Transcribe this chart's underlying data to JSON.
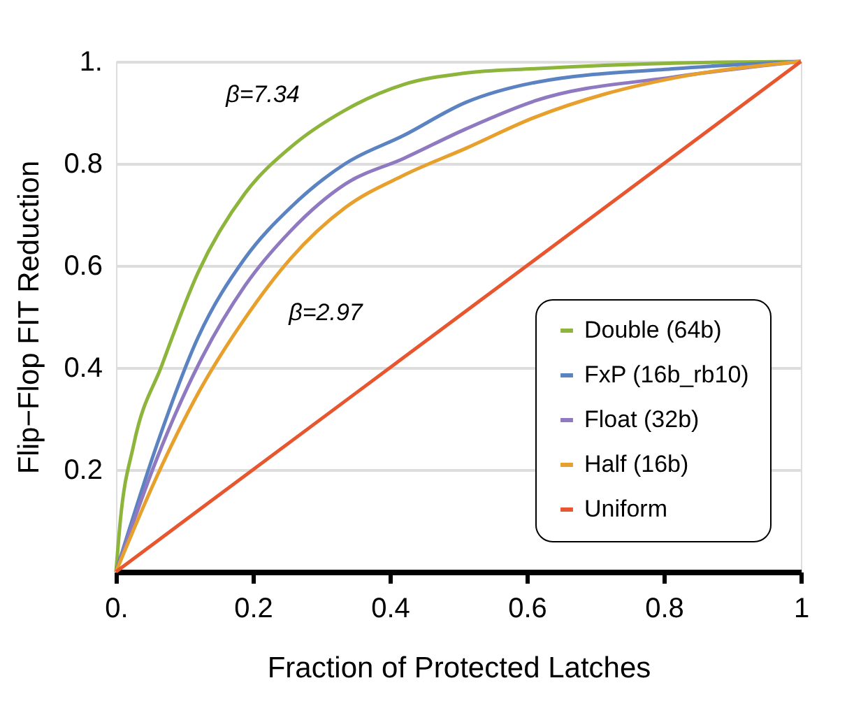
{
  "chart_data": {
    "type": "line",
    "xlabel": "Fraction of Protected Latches",
    "ylabel": "Flip−Flop FIT Reduction",
    "xlim": [
      0,
      1
    ],
    "ylim": [
      0,
      1
    ],
    "xticks": [
      {
        "value": 0,
        "label": "0."
      },
      0.2,
      0.4,
      0.6,
      0.8,
      1
    ],
    "yticks": [
      0.2,
      0.4,
      0.6,
      0.8,
      {
        "value": 1,
        "label": "1."
      }
    ],
    "grid": "y",
    "legend": "bottom right",
    "line_style": "solid",
    "marker": "none",
    "annotations": [
      "β=7.34",
      "β=2.97"
    ],
    "series": [
      {
        "name": "Double (64b)",
        "color": "#8db53c",
        "x": [
          0,
          0.006,
          0.026,
          0.067,
          0.12,
          0.188,
          0.255,
          0.335,
          0.42,
          0.508,
          0.612,
          0.816,
          1
        ],
        "values": [
          0,
          0.096,
          0.25,
          0.405,
          0.587,
          0.741,
          0.832,
          0.905,
          0.955,
          0.977,
          0.986,
          0.997,
          1
        ]
      },
      {
        "name": "FxP (16b_rb10)",
        "color": "#5b83c2",
        "x": [
          0,
          0.06,
          0.12,
          0.188,
          0.255,
          0.335,
          0.42,
          0.511,
          0.612,
          0.816,
          1
        ],
        "values": [
          0,
          0.25,
          0.46,
          0.614,
          0.714,
          0.8,
          0.855,
          0.92,
          0.959,
          0.986,
          1
        ]
      },
      {
        "name": "Float (32b)",
        "color": "#8f79c0",
        "x": [
          0,
          0.06,
          0.12,
          0.188,
          0.255,
          0.335,
          0.42,
          0.511,
          0.612,
          0.816,
          1
        ],
        "values": [
          0,
          0.223,
          0.405,
          0.56,
          0.668,
          0.76,
          0.81,
          0.868,
          0.923,
          0.97,
          1
        ]
      },
      {
        "name": "Half (16b)",
        "color": "#e8a02c",
        "x": [
          0,
          0.06,
          0.12,
          0.188,
          0.255,
          0.335,
          0.42,
          0.511,
          0.612,
          0.713,
          0.816,
          1
        ],
        "values": [
          0,
          0.188,
          0.35,
          0.496,
          0.614,
          0.714,
          0.777,
          0.83,
          0.891,
          0.936,
          0.968,
          1
        ]
      },
      {
        "name": "Uniform",
        "color": "#e8562f",
        "x": [
          0,
          1
        ],
        "values": [
          0,
          1
        ]
      }
    ]
  }
}
